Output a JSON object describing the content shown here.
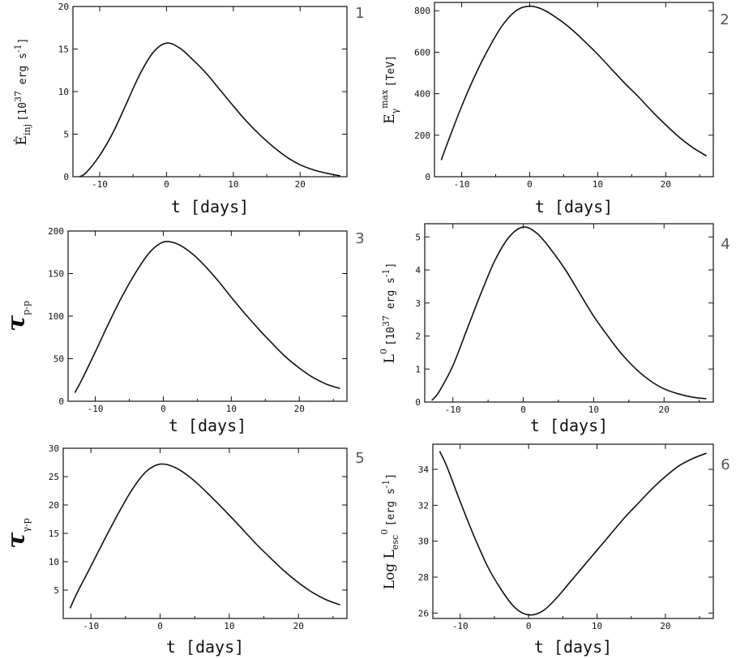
{
  "chart_data": [
    {
      "type": "line",
      "panel_number": "1",
      "ylabel": "Ė_inj [10^37 erg s^-1]",
      "ylabel_parts": {
        "main": "Ė",
        "sub": "inj",
        "bracket": "[10",
        "exp": "37",
        "rest": " erg s",
        "exp2": "-1",
        "close": "]"
      },
      "xlabel": "t [days]",
      "xlim": [
        -14,
        27
      ],
      "ylim": [
        0,
        20
      ],
      "xticks": [
        -10,
        0,
        10,
        20
      ],
      "yticks": [
        0,
        5,
        10,
        15,
        20
      ],
      "x": [
        -13,
        -12,
        -10,
        -8,
        -6,
        -4,
        -2,
        0,
        2,
        4,
        6,
        8,
        10,
        12,
        14,
        16,
        18,
        20,
        22,
        24,
        26
      ],
      "y": [
        0.0,
        0.5,
        2.5,
        5.2,
        8.6,
        12.0,
        14.6,
        15.7,
        15.1,
        13.7,
        12.1,
        10.2,
        8.3,
        6.5,
        4.9,
        3.5,
        2.3,
        1.4,
        0.8,
        0.4,
        0.1
      ]
    },
    {
      "type": "line",
      "panel_number": "2",
      "ylabel": "E_γ^max [TeV]",
      "ylabel_parts": {
        "main": "E",
        "sub": "γ",
        "sup": "max",
        "bracket": "[TeV]"
      },
      "xlabel": "t [days]",
      "xlim": [
        -14,
        27
      ],
      "ylim": [
        0,
        840
      ],
      "xticks": [
        -10,
        0,
        10,
        20
      ],
      "yticks": [
        0,
        200,
        400,
        600,
        800
      ],
      "x": [
        -13,
        -12,
        -10,
        -8,
        -6,
        -4,
        -2,
        0,
        2,
        4,
        6,
        8,
        10,
        12,
        14,
        16,
        18,
        20,
        22,
        24,
        26
      ],
      "y": [
        80,
        170,
        340,
        490,
        620,
        730,
        800,
        822,
        805,
        765,
        715,
        655,
        590,
        520,
        450,
        385,
        315,
        250,
        190,
        140,
        100
      ]
    },
    {
      "type": "line",
      "panel_number": "3",
      "ylabel": "τ_p-p",
      "ylabel_parts": {
        "main": "τ",
        "sub": "p-p"
      },
      "xlabel": "t [days]",
      "xlim": [
        -14,
        27
      ],
      "ylim": [
        0,
        200
      ],
      "xticks": [
        -10,
        0,
        10,
        20
      ],
      "yticks": [
        0,
        50,
        100,
        150,
        200
      ],
      "x": [
        -13,
        -12,
        -10,
        -8,
        -6,
        -4,
        -2,
        0,
        2,
        4,
        6,
        8,
        10,
        12,
        14,
        16,
        18,
        20,
        22,
        24,
        26
      ],
      "y": [
        10,
        25,
        58,
        92,
        124,
        152,
        175,
        187,
        185,
        175,
        160,
        142,
        122,
        103,
        85,
        68,
        52,
        39,
        28,
        20,
        15
      ]
    },
    {
      "type": "line",
      "panel_number": "4",
      "ylabel": "L^0 [10^37 erg s^-1]",
      "ylabel_parts": {
        "main": "L",
        "sup": "0",
        "bracket": "[10",
        "exp": "37",
        "rest": " erg s",
        "exp2": "-1",
        "close": "]"
      },
      "xlabel": "t [days]",
      "xlim": [
        -14,
        27
      ],
      "ylim": [
        0,
        5.4
      ],
      "xticks": [
        -10,
        0,
        10,
        20
      ],
      "yticks": [
        0,
        1,
        2,
        3,
        4,
        5
      ],
      "x": [
        -13,
        -12,
        -10,
        -8,
        -6,
        -4,
        -2,
        0,
        2,
        4,
        6,
        8,
        10,
        12,
        14,
        16,
        18,
        20,
        22,
        24,
        26
      ],
      "y": [
        0.05,
        0.3,
        1.1,
        2.2,
        3.3,
        4.3,
        5.0,
        5.3,
        5.1,
        4.6,
        4.0,
        3.3,
        2.6,
        2.0,
        1.45,
        1.0,
        0.65,
        0.4,
        0.25,
        0.15,
        0.1
      ]
    },
    {
      "type": "line",
      "panel_number": "5",
      "ylabel": "τ_γ-p",
      "ylabel_parts": {
        "main": "τ",
        "sub": "γ-p"
      },
      "xlabel": "t [days]",
      "xlim": [
        -14,
        27
      ],
      "ylim": [
        0,
        30
      ],
      "xticks": [
        -10,
        0,
        10,
        20
      ],
      "yticks": [
        5,
        10,
        15,
        20,
        25,
        30
      ],
      "x": [
        -13,
        -12,
        -10,
        -8,
        -6,
        -4,
        -2,
        0,
        2,
        4,
        6,
        8,
        10,
        12,
        14,
        16,
        18,
        20,
        22,
        24,
        26
      ],
      "y": [
        1.8,
        4.5,
        9.2,
        14.0,
        18.6,
        22.8,
        25.9,
        27.2,
        26.7,
        25.2,
        23.1,
        20.7,
        18.2,
        15.6,
        13.0,
        10.6,
        8.3,
        6.3,
        4.6,
        3.3,
        2.4
      ]
    },
    {
      "type": "line",
      "panel_number": "6",
      "ylabel": "Log L_esc^0 [erg s^-1]",
      "ylabel_parts": {
        "log": "Log ",
        "main": "L",
        "sub": "esc",
        "sup": "0",
        "bracket": "[erg s",
        "exp2": "-1",
        "close": "]"
      },
      "xlabel": "t [days]",
      "xlim": [
        -14,
        27
      ],
      "ylim": [
        25.7,
        35.4
      ],
      "xticks": [
        -10,
        0,
        10,
        20
      ],
      "yticks": [
        26,
        28,
        30,
        32,
        34
      ],
      "x": [
        -13,
        -12,
        -10,
        -8,
        -6,
        -4,
        -2,
        0,
        2,
        4,
        6,
        8,
        10,
        12,
        14,
        16,
        18,
        20,
        22,
        24,
        26
      ],
      "y": [
        35.0,
        34.2,
        32.2,
        30.3,
        28.6,
        27.3,
        26.3,
        25.9,
        26.1,
        26.8,
        27.7,
        28.6,
        29.5,
        30.4,
        31.3,
        32.1,
        32.9,
        33.6,
        34.2,
        34.6,
        34.9
      ]
    }
  ]
}
